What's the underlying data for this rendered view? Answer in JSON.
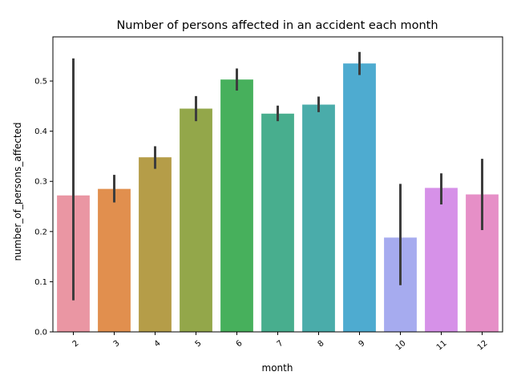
{
  "chart_data": {
    "type": "bar",
    "title": "Number of persons affected in an accident each month",
    "xlabel": "month",
    "ylabel": "number_of_persons_affected",
    "categories": [
      "2",
      "3",
      "4",
      "5",
      "6",
      "7",
      "8",
      "9",
      "10",
      "11",
      "12"
    ],
    "values": [
      0.272,
      0.285,
      0.348,
      0.445,
      0.503,
      0.435,
      0.453,
      0.535,
      0.188,
      0.287,
      0.274
    ],
    "error_bars": [
      [
        0.063,
        0.545
      ],
      [
        0.258,
        0.313
      ],
      [
        0.325,
        0.37
      ],
      [
        0.42,
        0.47
      ],
      [
        0.481,
        0.525
      ],
      [
        0.42,
        0.451
      ],
      [
        0.438,
        0.469
      ],
      [
        0.512,
        0.558
      ],
      [
        0.093,
        0.295
      ],
      [
        0.254,
        0.316
      ],
      [
        0.203,
        0.345
      ]
    ],
    "colors": [
      "#ea96a3",
      "#e18f4e",
      "#b59d48",
      "#93a74a",
      "#47b05c",
      "#48ae8e",
      "#4aacaa",
      "#4eabd0",
      "#a6abef",
      "#d691e8",
      "#e68fc7"
    ],
    "error_color": "#3d3d3d",
    "yticks": [
      0.0,
      0.1,
      0.2,
      0.3,
      0.4,
      0.5
    ],
    "ytick_labels": [
      "0.0",
      "0.1",
      "0.2",
      "0.3",
      "0.4",
      "0.5"
    ],
    "ylim": [
      0,
      0.588
    ],
    "grid": false,
    "legend": "none"
  }
}
